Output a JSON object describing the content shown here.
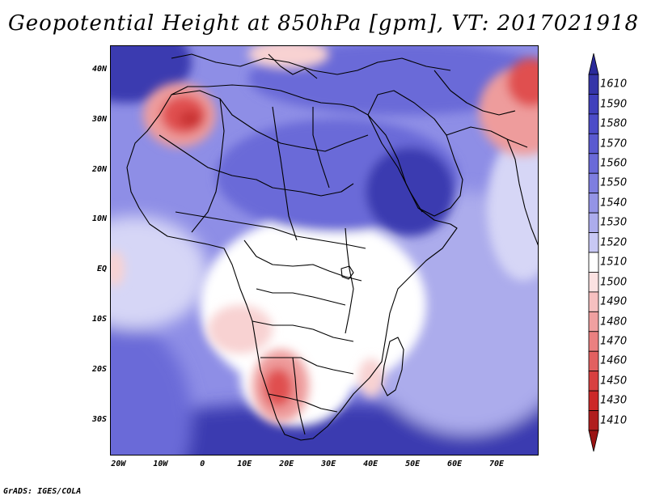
{
  "title": "Geopotential Height at 850hPa [gpm], VT: 2017021918",
  "footer": "GrADS: IGES/COLA",
  "lat_labels": [
    "40N",
    "30N",
    "20N",
    "10N",
    "EQ",
    "10S",
    "20S",
    "30S"
  ],
  "lon_labels": [
    "20W",
    "10W",
    "0",
    "10E",
    "20E",
    "30E",
    "40E",
    "50E",
    "60E",
    "70E"
  ],
  "colorbar": {
    "labels": [
      "1610",
      "1590",
      "1580",
      "1570",
      "1560",
      "1550",
      "1540",
      "1530",
      "1520",
      "1510",
      "1500",
      "1490",
      "1480",
      "1470",
      "1460",
      "1450",
      "1430",
      "1410"
    ],
    "colors": [
      "#3535a8",
      "#4040bc",
      "#4c4cc8",
      "#5a5ad0",
      "#6a6ad8",
      "#7e7ee0",
      "#9494e6",
      "#acacec",
      "#c8c8f4",
      "#ffffff",
      "#fbe1e1",
      "#f6c0c0",
      "#f0a0a0",
      "#ea8080",
      "#e26060",
      "#d84040",
      "#cc2828",
      "#b01e1e"
    ],
    "min_label": "1410",
    "max_label": "1610"
  },
  "map": {
    "lon_range": [
      -22,
      80
    ],
    "lat_range": [
      -37,
      45
    ],
    "ocean_color": "#8e8ee6",
    "field_colors": {
      "deep_blue": "#3b3bb0",
      "blue": "#6a6ad8",
      "light_blue": "#acacec",
      "pale_blue": "#d6d6f6",
      "white": "#ffffff",
      "pale_red": "#f8d2d2",
      "light_red": "#ee9c9c",
      "red": "#e05050",
      "dark_red": "#c83030"
    }
  }
}
